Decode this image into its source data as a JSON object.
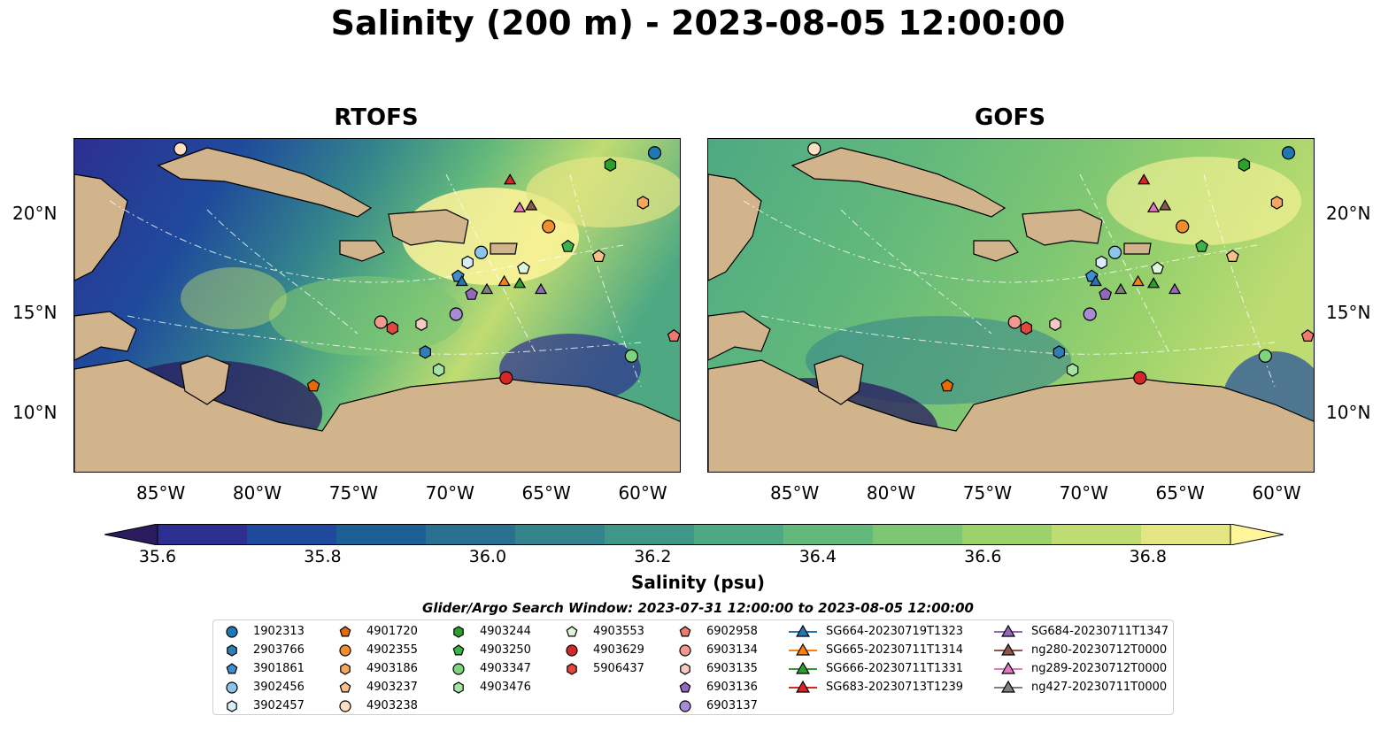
{
  "title": "Salinity (200 m) - 2023-08-05 12:00:00",
  "panels": [
    {
      "name": "RTOFS"
    },
    {
      "name": "GOFS"
    }
  ],
  "map": {
    "lon_range": [
      -89.5,
      -58.0
    ],
    "lat_range": [
      7.0,
      23.8
    ],
    "lon_ticks": [
      "85°W",
      "80°W",
      "75°W",
      "70°W",
      "65°W",
      "60°W"
    ],
    "lon_tick_values": [
      -85,
      -80,
      -75,
      -70,
      -65,
      -60
    ],
    "lat_ticks": [
      "20°N",
      "15°N",
      "10°N"
    ],
    "lat_tick_values": [
      20,
      15,
      10
    ],
    "colors": {
      "land": "#d2b48c",
      "shallow_water": "#9bb8e0",
      "contour": "#ffffff"
    }
  },
  "colorbar": {
    "label": "Salinity (psu)",
    "min": 35.6,
    "max": 36.9,
    "ticks": [
      "35.6",
      "35.8",
      "36.0",
      "36.2",
      "36.4",
      "36.6",
      "36.8"
    ],
    "tick_values": [
      35.6,
      35.8,
      36.0,
      36.2,
      36.4,
      36.6,
      36.8
    ],
    "colors": [
      "#2a1a5e",
      "#2c2f8f",
      "#1f4a9c",
      "#1c5f95",
      "#2a7191",
      "#34848c",
      "#3f978a",
      "#4ea983",
      "#63b97b",
      "#7dc673",
      "#9bd26c",
      "#bfdc72",
      "#e4e684",
      "#fff59a"
    ]
  },
  "search_window": "Glider/Argo Search Window: 2023-07-31 12:00:00 to 2023-08-05 12:00:00",
  "legend": [
    {
      "label": "1902313",
      "marker": "circle",
      "color": "#1f77b4",
      "lon": -59.4,
      "lat": 23.1
    },
    {
      "label": "2903766",
      "marker": "hexagon",
      "color": "#2c7fb8",
      "lon": -71.3,
      "lat": 13.1
    },
    {
      "label": "3901861",
      "marker": "pentagon",
      "color": "#3e8fd1",
      "lon": -69.6,
      "lat": 16.9
    },
    {
      "label": "3902456",
      "marker": "circle",
      "color": "#8cc5ea",
      "lon": -68.4,
      "lat": 18.1
    },
    {
      "label": "3902457",
      "marker": "hexagon",
      "color": "#d8ecfa",
      "lon": -69.1,
      "lat": 17.6
    },
    {
      "label": "4901720",
      "marker": "pentagon",
      "color": "#e66a06",
      "lon": -77.1,
      "lat": 11.4
    },
    {
      "label": "4902355",
      "marker": "circle",
      "color": "#f28e2b",
      "lon": -64.9,
      "lat": 19.4
    },
    {
      "label": "4903186",
      "marker": "hexagon",
      "color": "#f7a75d",
      "lon": -60.0,
      "lat": 20.6
    },
    {
      "label": "4903237",
      "marker": "pentagon",
      "color": "#f8c089",
      "lon": -62.3,
      "lat": 17.9
    },
    {
      "label": "4903238",
      "marker": "circle",
      "color": "#fde0c1",
      "lon": -84.0,
      "lat": 23.3
    },
    {
      "label": "4903244",
      "marker": "hexagon",
      "color": "#2ca02c",
      "lon": -61.7,
      "lat": 22.5
    },
    {
      "label": "4903250",
      "marker": "pentagon",
      "color": "#3cb34a",
      "lon": -63.9,
      "lat": 18.4
    },
    {
      "label": "4903347",
      "marker": "circle",
      "color": "#7fd37f",
      "lon": -60.6,
      "lat": 12.9
    },
    {
      "label": "4903476",
      "marker": "hexagon",
      "color": "#a6e3a6",
      "lon": -70.6,
      "lat": 12.2
    },
    {
      "label": "4903553",
      "marker": "pentagon",
      "color": "#dff5d8",
      "lon": -66.2,
      "lat": 17.3
    },
    {
      "label": "4903629",
      "marker": "circle",
      "color": "#d62728",
      "lon": -67.1,
      "lat": 11.8
    },
    {
      "label": "5906437",
      "marker": "hexagon",
      "color": "#e0473d",
      "lon": -73.0,
      "lat": 14.3
    },
    {
      "label": "6902958",
      "marker": "pentagon",
      "color": "#f07a6e",
      "lon": -58.4,
      "lat": 13.9
    },
    {
      "label": "6903134",
      "marker": "circle",
      "color": "#f2998f",
      "lon": -73.6,
      "lat": 14.6
    },
    {
      "label": "6903135",
      "marker": "hexagon",
      "color": "#f8c9c2",
      "lon": -71.5,
      "lat": 14.5
    },
    {
      "label": "6903136",
      "marker": "pentagon",
      "color": "#9467bd",
      "lon": -68.9,
      "lat": 16.0
    },
    {
      "label": "6903137",
      "marker": "circle",
      "color": "#a98bd3",
      "lon": -69.7,
      "lat": 15.0
    },
    {
      "label": "SG664-20230719T1323",
      "marker": "triangle",
      "color": "#1f77b4",
      "line": "#1f77b4",
      "lon": -69.4,
      "lat": 16.6
    },
    {
      "label": "SG665-20230711T1314",
      "marker": "triangle",
      "color": "#ff7f0e",
      "line": "#ff7f0e",
      "lon": -67.2,
      "lat": 16.6
    },
    {
      "label": "SG666-20230711T1331",
      "marker": "triangle",
      "color": "#2ca02c",
      "line": "#2ca02c",
      "lon": -66.4,
      "lat": 16.5
    },
    {
      "label": "SG683-20230713T1239",
      "marker": "triangle",
      "color": "#d62728",
      "line": "#d62728",
      "lon": -66.9,
      "lat": 21.7
    },
    {
      "label": "SG684-20230711T1347",
      "marker": "triangle",
      "color": "#9467bd",
      "line": "#9467bd",
      "lon": -65.3,
      "lat": 16.2
    },
    {
      "label": "ng280-20230712T0000",
      "marker": "triangle",
      "color": "#8c564b",
      "line": "#8c564b",
      "lon": -65.8,
      "lat": 20.4
    },
    {
      "label": "ng289-20230712T0000",
      "marker": "triangle",
      "color": "#e377c2",
      "line": "#e377c2",
      "lon": -66.4,
      "lat": 20.3
    },
    {
      "label": "ng427-20230711T0000",
      "marker": "triangle",
      "color": "#7f7f7f",
      "line": "#7f7f7f",
      "lon": -68.1,
      "lat": 16.2
    }
  ]
}
